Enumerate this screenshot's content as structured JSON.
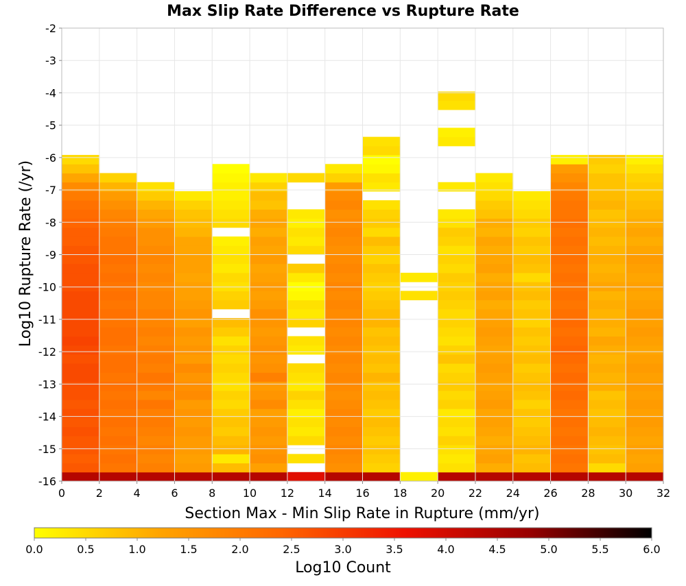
{
  "chart_data": {
    "type": "heatmap",
    "title": "Max Slip Rate Difference vs Rupture Rate",
    "xlabel": "Section Max - Min Slip Rate in Rupture (mm/yr)",
    "ylabel": "Log10 Rupture Rate (/yr)",
    "xlim": [
      0,
      32
    ],
    "ylim": [
      -16,
      -2
    ],
    "x_ticks": [
      "0",
      "2",
      "4",
      "6",
      "8",
      "10",
      "12",
      "14",
      "16",
      "18",
      "20",
      "22",
      "24",
      "26",
      "28",
      "30",
      "32"
    ],
    "y_ticks": [
      "-2",
      "-3",
      "-4",
      "-5",
      "-6",
      "-7",
      "-8",
      "-9",
      "-10",
      "-11",
      "-12",
      "-13",
      "-14",
      "-15",
      "-16"
    ],
    "x_bin_width": 2,
    "y_bin_height": 0.28,
    "y_bins_start": -16,
    "colorbar": {
      "label": "Log10 Count",
      "range": [
        0.0,
        6.0
      ],
      "ticks": [
        "0.0",
        "0.5",
        "1.0",
        "1.5",
        "2.0",
        "2.5",
        "3.0",
        "3.5",
        "4.0",
        "4.5",
        "5.0",
        "5.5",
        "6.0"
      ],
      "colors": [
        "#ffff00",
        "#ffa500",
        "#ff6600",
        "#ee1100",
        "#990000",
        "#000000"
      ]
    },
    "column_value_note": "Each value is log10 count for a cell; rows run from y=-16 upward in 0.28 steps; null = empty",
    "columns": [
      {
        "x": 1,
        "values": [
          4.4,
          2.6,
          2.5,
          2.6,
          2.6,
          2.7,
          2.6,
          2.7,
          2.6,
          2.7,
          2.7,
          2.8,
          2.8,
          2.7,
          2.8,
          2.9,
          2.8,
          2.8,
          2.8,
          2.8,
          2.8,
          2.7,
          2.7,
          2.7,
          2.6,
          2.6,
          2.5,
          2.5,
          2.4,
          2.3,
          2.2,
          2.0,
          1.7,
          1.2,
          0.8,
          0.5,
          null,
          null,
          null,
          null,
          null,
          null,
          null,
          null,
          null,
          null,
          null,
          null,
          null,
          null
        ]
      },
      {
        "x": 3,
        "values": [
          4.4,
          2.1,
          2.2,
          2.1,
          2.2,
          2.1,
          2.2,
          2.1,
          2.2,
          2.1,
          2.2,
          2.1,
          2.2,
          2.2,
          2.1,
          2.2,
          2.2,
          2.1,
          2.2,
          2.1,
          2.2,
          2.1,
          2.2,
          2.1,
          2.2,
          2.1,
          2.1,
          2.0,
          1.9,
          1.8,
          1.6,
          1.4,
          1.0,
          0.6,
          null,
          null,
          null,
          null,
          null,
          null,
          null,
          null,
          null,
          null,
          null,
          null,
          null,
          null,
          null,
          null
        ]
      },
      {
        "x": 5,
        "values": [
          4.4,
          1.9,
          1.8,
          1.9,
          1.8,
          1.9,
          2.0,
          1.9,
          2.1,
          1.8,
          2.0,
          2.1,
          1.9,
          2.0,
          1.9,
          1.8,
          1.9,
          1.8,
          1.9,
          1.8,
          1.8,
          1.7,
          1.8,
          1.7,
          1.8,
          1.7,
          1.6,
          1.6,
          1.4,
          1.2,
          1.0,
          0.7,
          0.4,
          null,
          null,
          null,
          null,
          null,
          null,
          null,
          null,
          null,
          null,
          null,
          null,
          null,
          null,
          null,
          null,
          null
        ]
      },
      {
        "x": 7,
        "values": [
          4.4,
          1.4,
          1.3,
          1.4,
          1.4,
          1.5,
          1.4,
          1.5,
          1.4,
          1.7,
          1.6,
          1.5,
          1.7,
          1.4,
          1.5,
          1.4,
          1.5,
          1.3,
          1.5,
          1.4,
          1.3,
          1.3,
          1.2,
          1.3,
          1.3,
          1.2,
          1.2,
          1.0,
          0.9,
          0.8,
          0.6,
          0.3,
          null,
          null,
          null,
          null,
          null,
          null,
          null,
          null,
          null,
          null,
          null,
          null,
          null,
          null,
          null,
          null,
          null,
          null
        ]
      },
      {
        "x": 9,
        "values": [
          4.4,
          0.9,
          0.3,
          1.0,
          0.9,
          0.7,
          0.8,
          0.7,
          0.5,
          0.6,
          0.4,
          0.5,
          0.6,
          0.5,
          0.6,
          0.4,
          0.7,
          0.9,
          null,
          0.7,
          0.6,
          0.4,
          0.5,
          0.3,
          0.4,
          0.3,
          0.2,
          null,
          0.5,
          0.4,
          0.3,
          0.2,
          0.2,
          0.1,
          0.0,
          null,
          null,
          null,
          null,
          null,
          null,
          null,
          null,
          null,
          null,
          null,
          null,
          null,
          null,
          null
        ]
      },
      {
        "x": 11,
        "values": [
          4.4,
          1.3,
          1.6,
          1.5,
          1.4,
          1.5,
          1.4,
          1.3,
          1.7,
          1.5,
          1.4,
          1.9,
          1.6,
          1.5,
          1.6,
          1.5,
          1.4,
          1.5,
          1.6,
          1.4,
          1.3,
          1.4,
          1.3,
          1.2,
          1.4,
          1.2,
          1.3,
          1.1,
          1.2,
          1.1,
          0.8,
          0.9,
          0.6,
          0.3,
          null,
          null,
          null,
          null,
          null,
          null,
          null,
          null,
          null,
          null,
          null,
          null,
          null,
          null,
          null,
          null
        ]
      },
      {
        "x": 13,
        "values": [
          3.8,
          null,
          0.4,
          null,
          0.5,
          0.3,
          0.4,
          0.2,
          0.4,
          0.6,
          0.3,
          0.4,
          0.5,
          null,
          0.3,
          0.4,
          null,
          0.6,
          0.3,
          0.4,
          0.1,
          0.0,
          0.3,
          0.7,
          null,
          0.5,
          0.3,
          0.4,
          0.2,
          0.3,
          null,
          null,
          null,
          0.5,
          null,
          null,
          null,
          null,
          null,
          null,
          null,
          null,
          null,
          null,
          null,
          null,
          null,
          null,
          null,
          null
        ]
      },
      {
        "x": 15,
        "values": [
          4.4,
          1.6,
          1.7,
          1.8,
          1.7,
          1.8,
          1.7,
          1.8,
          1.7,
          1.6,
          1.7,
          1.8,
          1.7,
          1.8,
          1.7,
          1.8,
          1.7,
          1.8,
          1.7,
          1.8,
          1.7,
          1.8,
          1.7,
          1.8,
          1.7,
          1.6,
          1.7,
          1.8,
          1.7,
          1.6,
          1.8,
          1.7,
          1.4,
          0.6,
          0.3,
          null,
          null,
          null,
          null,
          null,
          null,
          null,
          null,
          null,
          null,
          null,
          null,
          null,
          null,
          null
        ]
      },
      {
        "x": 17,
        "values": [
          4.4,
          0.6,
          0.7,
          0.8,
          0.7,
          0.8,
          0.9,
          0.7,
          0.8,
          0.9,
          0.8,
          1.0,
          0.8,
          0.9,
          0.8,
          0.9,
          0.8,
          1.0,
          0.9,
          0.8,
          0.7,
          0.6,
          0.7,
          0.8,
          0.6,
          0.7,
          0.9,
          0.5,
          0.7,
          0.6,
          0.4,
          null,
          0.3,
          0.4,
          0.1,
          0.0,
          0.5,
          0.4,
          null,
          null,
          null,
          null,
          null,
          null,
          null,
          null,
          null,
          null,
          null,
          null
        ]
      },
      {
        "x": 19,
        "values": [
          0.2,
          null,
          null,
          null,
          null,
          null,
          null,
          null,
          null,
          null,
          null,
          null,
          null,
          null,
          null,
          null,
          null,
          null,
          null,
          null,
          0.4,
          null,
          0.3,
          null,
          null,
          null,
          null,
          null,
          null,
          null,
          null,
          null,
          null,
          null,
          null,
          null,
          null,
          null,
          null,
          null,
          null,
          null,
          null,
          null,
          null,
          null,
          null,
          null,
          null,
          null
        ]
      },
      {
        "x": 21,
        "values": [
          4.4,
          0.4,
          0.3,
          0.4,
          0.6,
          0.4,
          0.5,
          0.3,
          0.6,
          0.5,
          0.7,
          0.6,
          0.5,
          0.8,
          0.6,
          0.4,
          0.5,
          0.6,
          0.5,
          0.6,
          0.7,
          0.6,
          0.7,
          0.5,
          0.6,
          0.4,
          0.6,
          0.7,
          0.4,
          0.3,
          null,
          null,
          0.3,
          null,
          null,
          null,
          null,
          0.3,
          0.2,
          null,
          null,
          0.4,
          0.5,
          null,
          null,
          null,
          null,
          null,
          null,
          null
        ]
      },
      {
        "x": 23,
        "values": [
          4.4,
          1.1,
          1.3,
          1.2,
          1.1,
          1.2,
          1.3,
          1.2,
          1.4,
          1.3,
          1.2,
          1.3,
          1.4,
          1.3,
          1.2,
          1.3,
          1.4,
          1.3,
          1.2,
          1.1,
          1.3,
          1.2,
          1.1,
          1.3,
          1.2,
          1.1,
          1.2,
          1.0,
          1.1,
          0.8,
          0.7,
          0.5,
          0.4,
          0.3,
          null,
          null,
          null,
          null,
          null,
          null,
          null,
          null,
          null,
          null,
          null,
          null,
          null,
          null,
          null,
          null
        ]
      },
      {
        "x": 25,
        "values": [
          4.4,
          0.9,
          0.8,
          1.0,
          0.9,
          0.8,
          0.7,
          0.8,
          0.6,
          0.8,
          0.9,
          0.8,
          0.7,
          0.9,
          0.8,
          0.7,
          0.8,
          0.6,
          0.8,
          0.7,
          0.9,
          0.8,
          0.5,
          0.8,
          0.9,
          0.7,
          0.8,
          0.6,
          0.7,
          0.5,
          0.4,
          0.3,
          null,
          null,
          null,
          null,
          null,
          null,
          null,
          null,
          null,
          null,
          null,
          null,
          null,
          null,
          null,
          null,
          null,
          null
        ]
      },
      {
        "x": 27,
        "values": [
          4.4,
          2.1,
          2.2,
          2.1,
          2.2,
          2.1,
          2.2,
          2.1,
          2.2,
          2.3,
          2.2,
          2.3,
          2.2,
          2.3,
          2.4,
          2.3,
          2.2,
          2.3,
          2.2,
          2.1,
          2.2,
          2.1,
          2.2,
          2.1,
          2.2,
          2.1,
          2.2,
          2.1,
          2.2,
          2.1,
          2.1,
          2.0,
          1.8,
          1.6,
          1.4,
          0.2,
          null,
          null,
          null,
          null,
          null,
          null,
          null,
          null,
          null,
          null,
          null,
          null,
          null,
          null
        ]
      },
      {
        "x": 29,
        "values": [
          4.4,
          0.5,
          0.9,
          0.8,
          0.9,
          1.0,
          0.9,
          0.8,
          0.9,
          0.8,
          1.1,
          1.0,
          1.1,
          1.0,
          1.1,
          1.2,
          1.0,
          1.1,
          1.0,
          1.1,
          1.0,
          1.2,
          1.1,
          1.0,
          1.1,
          1.0,
          0.9,
          1.0,
          0.9,
          0.8,
          1.0,
          0.9,
          0.8,
          0.8,
          0.6,
          0.7,
          null,
          null,
          null,
          null,
          null,
          null,
          null,
          null,
          null,
          null,
          null,
          null,
          null,
          null
        ]
      },
      {
        "x": 31,
        "values": [
          4.4,
          1.3,
          1.2,
          1.3,
          1.2,
          1.3,
          1.4,
          1.3,
          1.4,
          1.3,
          1.4,
          1.3,
          1.4,
          1.3,
          1.2,
          1.3,
          1.4,
          1.3,
          1.4,
          1.3,
          1.2,
          1.3,
          1.2,
          1.3,
          1.4,
          1.2,
          1.1,
          1.2,
          1.1,
          1.0,
          0.9,
          0.8,
          0.7,
          0.6,
          0.4,
          0.2,
          null,
          null,
          null,
          null,
          null,
          null,
          null,
          null,
          null,
          null,
          null,
          null,
          null,
          null
        ]
      }
    ]
  }
}
